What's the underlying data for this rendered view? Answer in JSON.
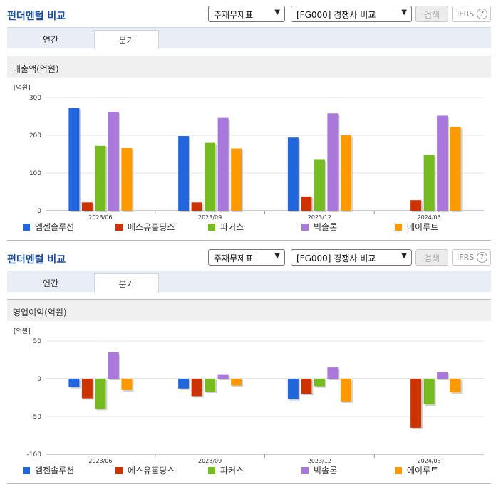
{
  "sections": [
    {
      "title": "펀더멘털 비교",
      "financial_select": "주재무제표",
      "competitor_select": "[FG000] 경쟁사 비교",
      "search_label": "검색",
      "ifrs_label": "IFRS",
      "ifrs_help": "?",
      "tabs": [
        {
          "label": "연간"
        },
        {
          "label": "분기"
        }
      ],
      "active_tab": "분기",
      "panel_title": "매출액(억원)",
      "chart_data": {
        "type": "bar",
        "unit": "[억원]",
        "categories": [
          "2023/06",
          "2023/09",
          "2023/12",
          "2024/03"
        ],
        "ylim": [
          0,
          300
        ],
        "yticks": [
          0,
          100,
          200,
          300
        ],
        "series": [
          {
            "name": "엠젠솔루션",
            "color": "#2266dd",
            "values": [
              272,
              198,
              194,
              null
            ]
          },
          {
            "name": "에스유홀딩스",
            "color": "#cc3300",
            "values": [
              22,
              22,
              38,
              28
            ]
          },
          {
            "name": "파커스",
            "color": "#77bb22",
            "values": [
              172,
              180,
              135,
              148
            ]
          },
          {
            "name": "빅솔론",
            "color": "#aa77dd",
            "values": [
              262,
              246,
              258,
              252
            ]
          },
          {
            "name": "에이루트",
            "color": "#ff9900",
            "values": [
              166,
              165,
              200,
              222
            ]
          }
        ]
      }
    },
    {
      "title": "펀더멘털 비교",
      "financial_select": "주재무제표",
      "competitor_select": "[FG000] 경쟁사 비교",
      "search_label": "검색",
      "ifrs_label": "IFRS",
      "ifrs_help": "?",
      "tabs": [
        {
          "label": "연간"
        },
        {
          "label": "분기"
        }
      ],
      "active_tab": "분기",
      "panel_title": "영업이익(억원)",
      "chart_data": {
        "type": "bar",
        "unit": "[억원]",
        "categories": [
          "2023/06",
          "2023/09",
          "2023/12",
          "2024/03"
        ],
        "ylim": [
          -100,
          50
        ],
        "yticks": [
          -100,
          -50,
          0,
          50
        ],
        "series": [
          {
            "name": "엠젠솔루션",
            "color": "#2266dd",
            "values": [
              -11,
              -13,
              -27,
              null
            ]
          },
          {
            "name": "에스유홀딩스",
            "color": "#cc3300",
            "values": [
              -26,
              -23,
              -20,
              -65
            ]
          },
          {
            "name": "파커스",
            "color": "#77bb22",
            "values": [
              -40,
              -17,
              -10,
              -34
            ]
          },
          {
            "name": "빅솔론",
            "color": "#aa77dd",
            "values": [
              35,
              6,
              15,
              9
            ]
          },
          {
            "name": "에이루트",
            "color": "#ff9900",
            "values": [
              -15,
              -9,
              -30,
              -18
            ]
          }
        ]
      }
    }
  ]
}
